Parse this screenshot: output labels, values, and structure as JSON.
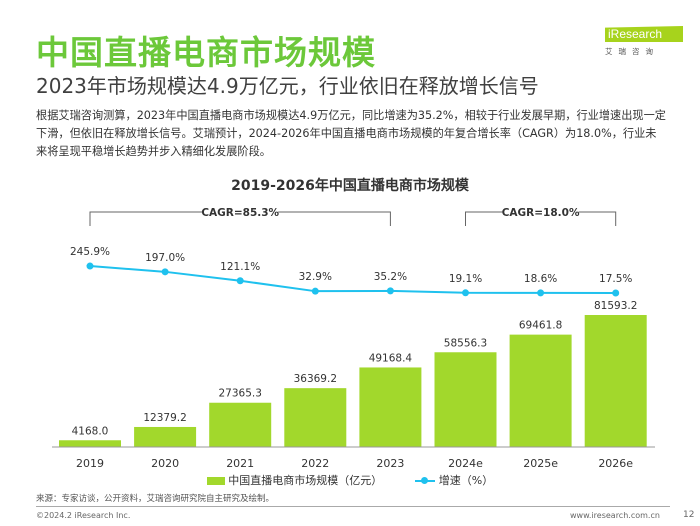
{
  "title": "中国直播电商市场规模",
  "subtitle": "2023年市场规模达4.9万亿元，行业依旧在释放增长信号",
  "body": "根据艾瑞咨询测算，2023年中国直播电商市场规模达4.9万亿元，同比增速为35.2%，相较于行业发展早期，行业增速出现一定下滑，但依旧在释放增长信号。艾瑞预计，2024-2026年中国直播电商市场规模的年复合增长率（CAGR）为18.0%，行业未来将呈现平稳增长趋势并步入精细化发展阶段。",
  "logo": {
    "text": "iResearch",
    "cn": "艾瑞咨询"
  },
  "chart_data": {
    "type": "bar+line",
    "title": "2019-2026年中国直播电商市场规模",
    "categories": [
      "2019",
      "2020",
      "2021",
      "2022",
      "2023",
      "2024e",
      "2025e",
      "2026e"
    ],
    "series": [
      {
        "name": "中国直播电商市场规模（亿元）",
        "type": "bar",
        "color": "#a2d82c",
        "values": [
          4168.0,
          12379.2,
          27365.3,
          36369.2,
          49168.4,
          58556.3,
          69461.8,
          81593.2
        ],
        "labels": [
          "4168.0",
          "12379.2",
          "27365.3",
          "36369.2",
          "49168.4",
          "58556.3",
          "69461.8",
          "81593.2"
        ]
      },
      {
        "name": "增速（%）",
        "type": "line",
        "color": "#1fc1ee",
        "values": [
          245.9,
          197.0,
          121.1,
          32.9,
          35.2,
          19.1,
          18.6,
          17.5
        ],
        "labels": [
          "245.9%",
          "197.0%",
          "121.1%",
          "32.9%",
          "35.2%",
          "19.1%",
          "18.6%",
          "17.5%"
        ]
      }
    ],
    "annotations": [
      {
        "text": "CAGR=85.3%",
        "from": "2019",
        "to": "2023"
      },
      {
        "text": "CAGR=18.0%",
        "from": "2024e",
        "to": "2026e"
      }
    ],
    "legend": "bottom"
  },
  "source": "来源：专家访谈，公开资料，艾瑞咨询研究院自主研究及绘制。",
  "footer": {
    "copyright": "©2024.2 iResearch Inc.",
    "url": "www.iresearch.com.cn",
    "page": "12"
  }
}
